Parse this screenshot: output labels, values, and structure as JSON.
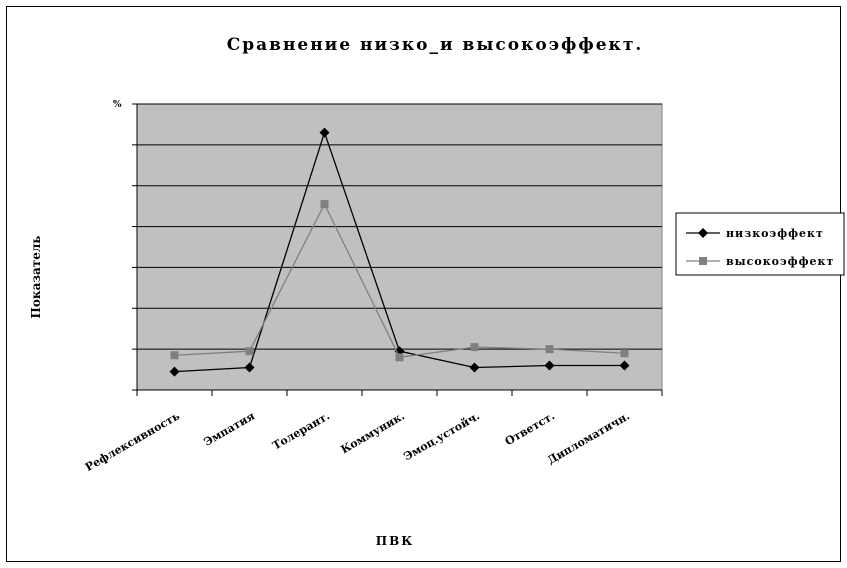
{
  "chart_data": {
    "type": "line",
    "title": "Сравнение низко_и высокоэффект.",
    "xlabel": "ПВК",
    "ylabel": "Показатель",
    "categories": [
      "Рефлексивность",
      "Эмпатия",
      "Толерант.",
      "Коммуник.",
      "Эмоц.устойч.",
      "Ответст.",
      "Дипломатичн."
    ],
    "y_ticks": [
      "",
      "",
      "",
      "",
      "",
      "",
      "",
      ""
    ],
    "top_tick": "%",
    "ylim": [
      0,
      7
    ],
    "grid": true,
    "plot_background": "#c0c0c0",
    "legend_position": "right",
    "series": [
      {
        "name": "низкоэффект",
        "color": "#000000",
        "marker": "diamond",
        "values": [
          0.45,
          0.55,
          6.3,
          0.95,
          0.55,
          0.6,
          0.6
        ]
      },
      {
        "name": "высокоэффект",
        "color": "#808080",
        "marker": "square",
        "values": [
          0.85,
          0.95,
          4.55,
          0.8,
          1.05,
          1.0,
          0.9
        ]
      }
    ]
  }
}
